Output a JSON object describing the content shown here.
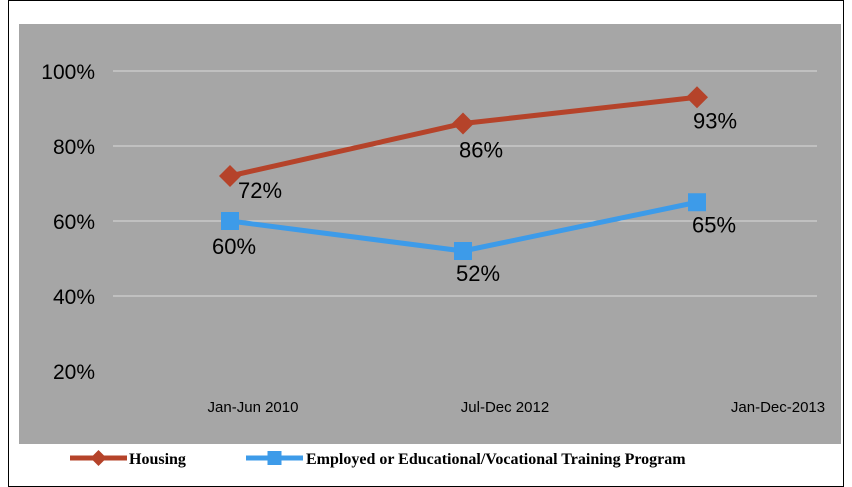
{
  "chart_data": {
    "type": "line",
    "categories": [
      "Jan-Jun 2010",
      "Jul-Dec 2012",
      "Jan-Dec-2013"
    ],
    "series": [
      {
        "name": "Housing",
        "values": [
          72,
          86,
          93
        ],
        "labels": [
          "72%",
          "86%",
          "93%"
        ],
        "color": "#b5432a",
        "marker": "diamond"
      },
      {
        "name": "Employed or Educational/Vocational Training Program",
        "values": [
          60,
          52,
          65
        ],
        "labels": [
          "60%",
          "52%",
          "65%"
        ],
        "color": "#3d9be9",
        "marker": "square"
      }
    ],
    "yticks": [
      20,
      40,
      60,
      80,
      100
    ],
    "ytick_labels": [
      "20%",
      "40%",
      "60%",
      "80%",
      "100%"
    ],
    "ylim": [
      20,
      100
    ],
    "grid": true,
    "legend_position": "bottom",
    "plot_background": "#a6a6a6"
  }
}
